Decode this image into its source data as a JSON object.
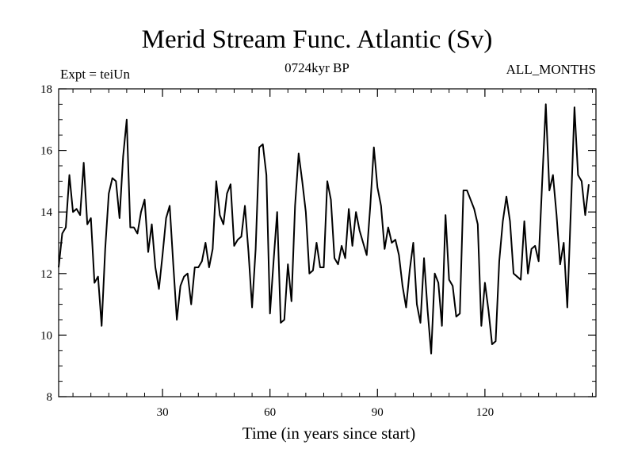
{
  "chart_data": {
    "type": "line",
    "title": "Merid Stream Func. Atlantic (Sv)",
    "subtitle": "0724kyr BP",
    "left_label": "Expt = teiUn",
    "right_label": "ALL_MONTHS",
    "xlabel": "Time (in years since start)",
    "ylabel": "",
    "xlim": [
      1,
      151
    ],
    "ylim": [
      8,
      18
    ],
    "x_ticks": [
      30,
      60,
      90,
      120
    ],
    "y_ticks": [
      8,
      10,
      12,
      14,
      16,
      18
    ],
    "series": [
      {
        "name": "Merid Stream Func. Atlantic",
        "x_start": 1,
        "x_step": 1,
        "values": [
          12.2,
          13.3,
          13.5,
          15.2,
          14.0,
          14.1,
          13.9,
          15.6,
          13.6,
          13.8,
          11.7,
          11.9,
          10.3,
          12.8,
          14.6,
          15.1,
          15.0,
          13.8,
          15.8,
          17.0,
          13.5,
          13.5,
          13.3,
          14.0,
          14.4,
          12.7,
          13.6,
          12.2,
          11.5,
          12.6,
          13.8,
          14.2,
          12.3,
          10.5,
          11.6,
          11.9,
          12.0,
          11.0,
          12.2,
          12.2,
          12.4,
          13.0,
          12.2,
          12.8,
          15.0,
          13.9,
          13.6,
          14.6,
          14.9,
          12.9,
          13.1,
          13.2,
          14.2,
          12.7,
          10.9,
          12.8,
          16.1,
          16.2,
          15.2,
          10.7,
          12.4,
          14.0,
          10.4,
          10.5,
          12.3,
          11.1,
          14.2,
          15.9,
          15.0,
          14.0,
          12.0,
          12.1,
          13.0,
          12.2,
          12.2,
          15.0,
          14.4,
          12.5,
          12.3,
          12.9,
          12.5,
          14.1,
          12.9,
          14.0,
          13.4,
          13.0,
          12.6,
          14.2,
          16.1,
          14.8,
          14.2,
          12.8,
          13.5,
          13.0,
          13.1,
          12.6,
          11.6,
          10.9,
          12.1,
          13.0,
          11.0,
          10.4,
          12.5,
          10.8,
          9.4,
          12.0,
          11.7,
          10.3,
          13.9,
          11.8,
          11.6,
          10.6,
          10.7,
          14.7,
          14.7,
          14.4,
          14.1,
          13.6,
          10.3,
          11.7,
          10.8,
          9.7,
          9.8,
          12.4,
          13.7,
          14.5,
          13.7,
          12.0,
          11.9,
          11.8,
          13.7,
          12.0,
          12.8,
          12.9,
          12.4,
          15.0,
          17.5,
          14.7,
          15.2,
          13.9,
          12.3,
          13.0,
          10.9,
          14.1,
          17.4,
          15.2,
          15.0,
          13.9,
          14.9
        ]
      }
    ],
    "colors": {
      "line": "#000000",
      "axis": "#000000",
      "background": "#ffffff"
    }
  }
}
